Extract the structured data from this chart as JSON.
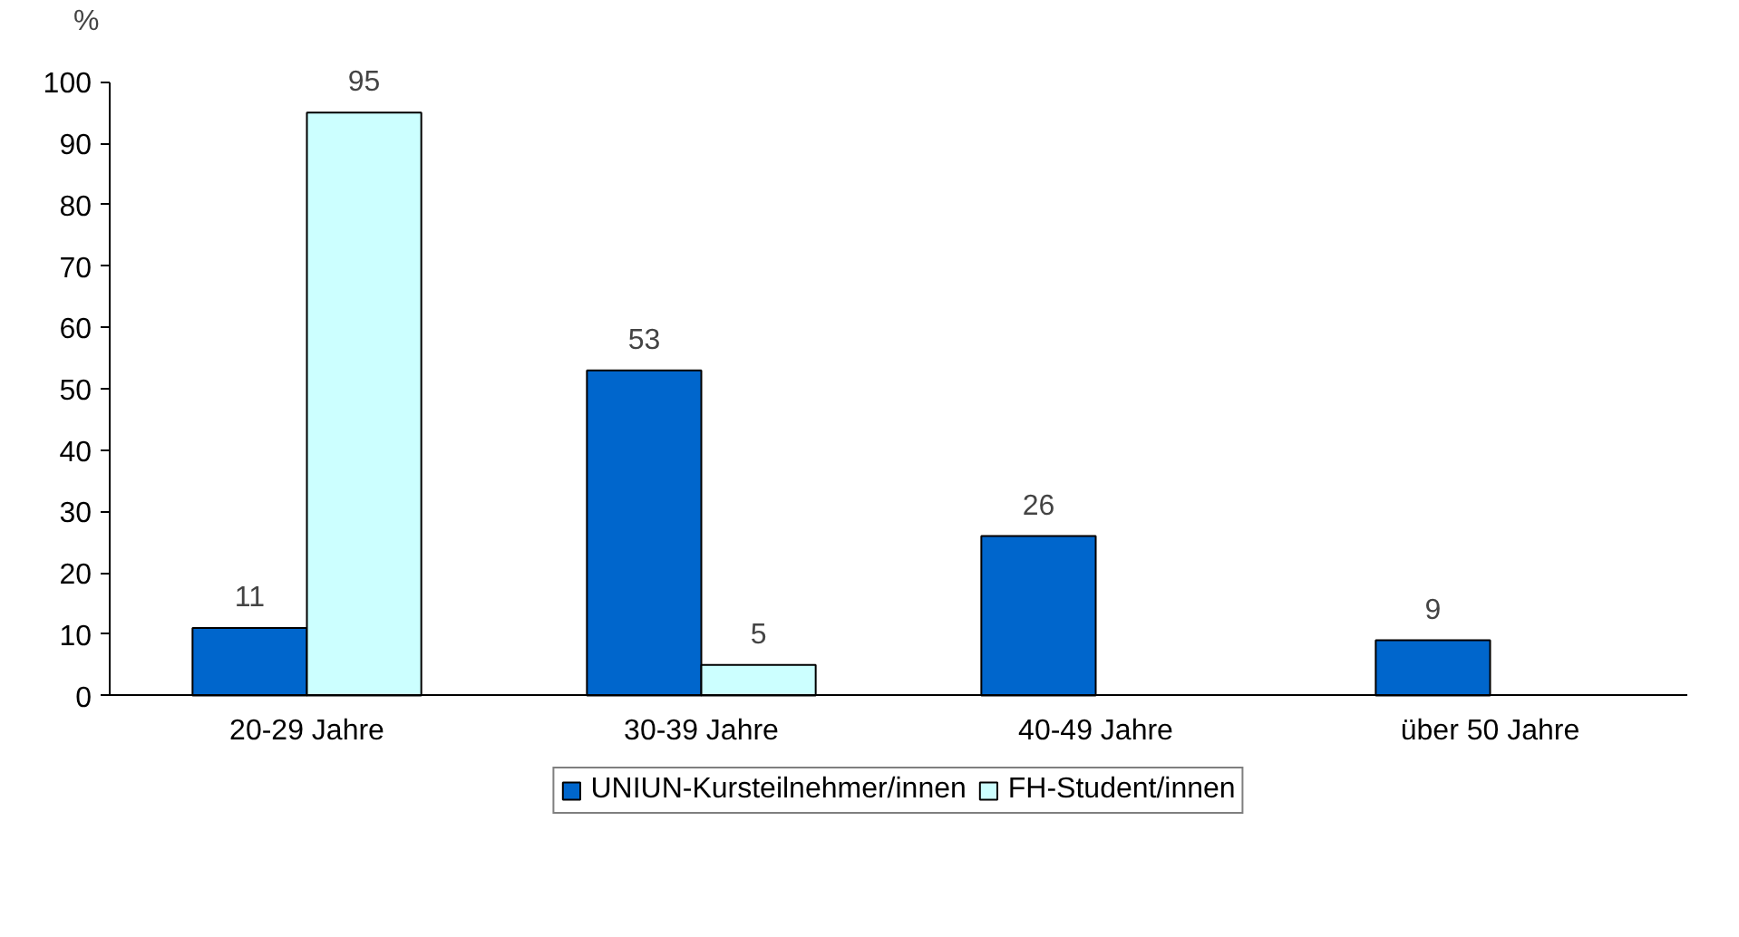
{
  "chart_data": {
    "type": "bar",
    "ylabel": "%",
    "categories": [
      "20-29 Jahre",
      "30-39 Jahre",
      "40-49 Jahre",
      "über 50 Jahre"
    ],
    "series": [
      {
        "name": "UNIUN-Kursteilnehmer/innen",
        "color": "#0066cc",
        "values": [
          11,
          53,
          26,
          9
        ]
      },
      {
        "name": "FH-Student/innen",
        "color": "#ccffff",
        "values": [
          95,
          5,
          null,
          null
        ]
      }
    ],
    "ylim": [
      0,
      100
    ],
    "yticks": [
      0,
      10,
      20,
      30,
      40,
      50,
      60,
      70,
      80,
      90,
      100
    ],
    "grid": false,
    "legend": "bottom",
    "data_labels": true
  }
}
